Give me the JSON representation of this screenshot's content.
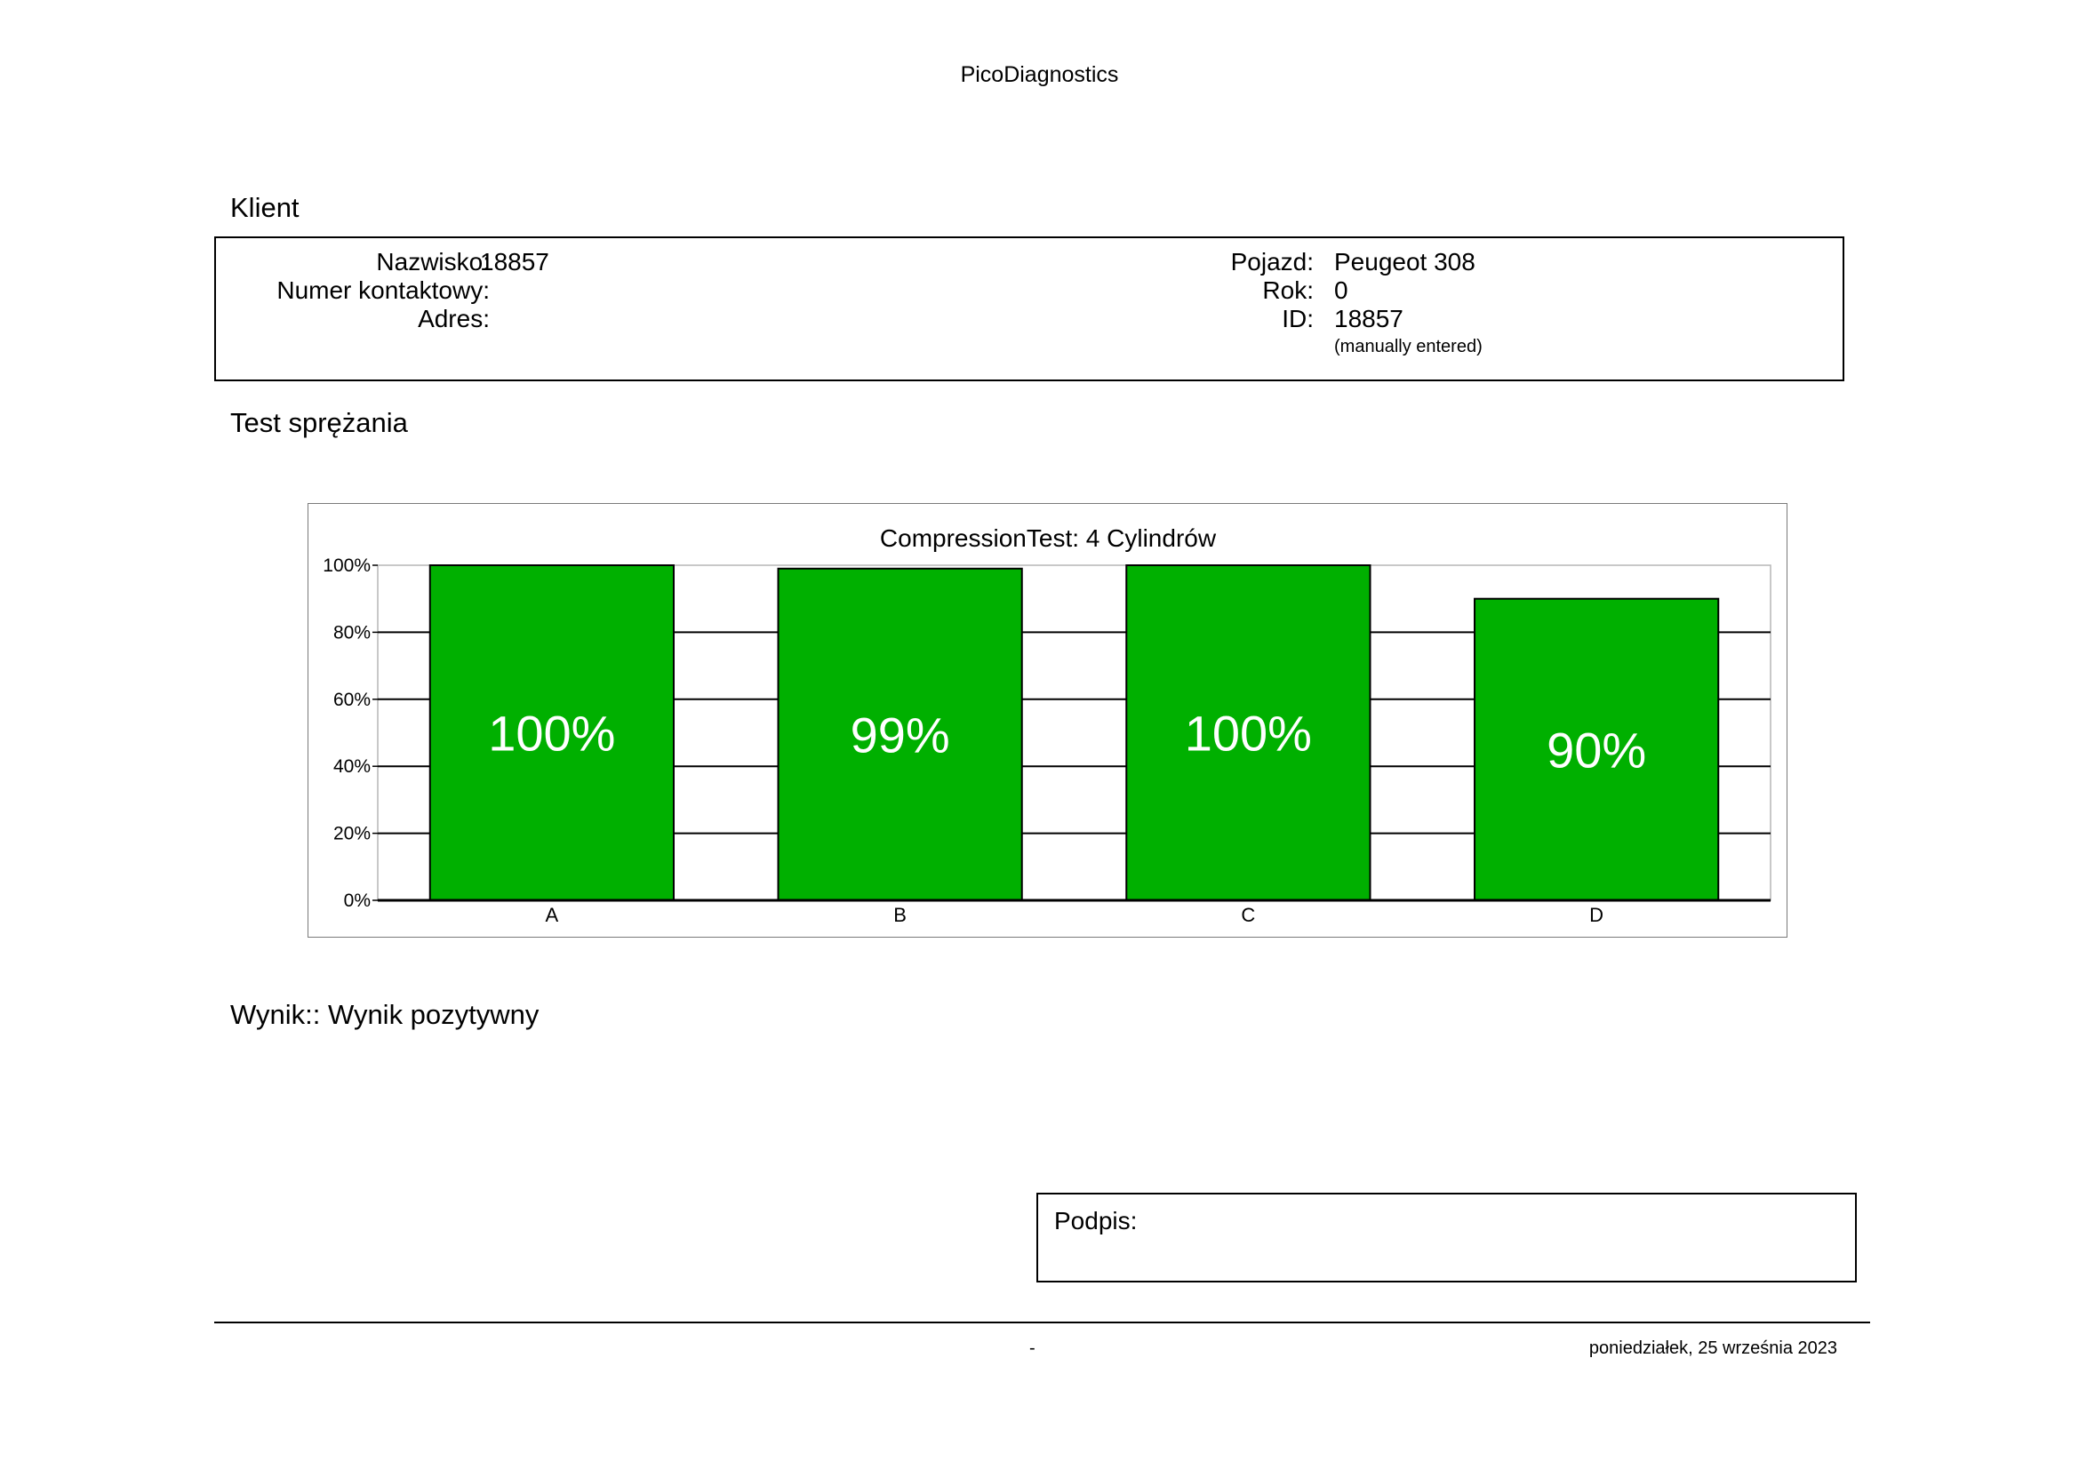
{
  "header": {
    "title": "PicoDiagnostics"
  },
  "client_section": {
    "title": "Klient",
    "left_fields": [
      {
        "label": "Nazwisko:",
        "value": "18857"
      },
      {
        "label": "Numer kontaktowy:",
        "value": ""
      },
      {
        "label": "Adres:",
        "value": ""
      }
    ],
    "right_fields": [
      {
        "label": "Pojazd:",
        "value": "Peugeot 308"
      },
      {
        "label": "Rok:",
        "value": "0"
      },
      {
        "label": "ID:",
        "value": "18857"
      }
    ],
    "id_note": "(manually entered)"
  },
  "test_section": {
    "title": "Test sprężania"
  },
  "chart_data": {
    "type": "bar",
    "title": "CompressionTest: 4 Cylindrów",
    "categories": [
      "A",
      "B",
      "C",
      "D"
    ],
    "values": [
      100,
      99,
      100,
      90
    ],
    "value_labels": [
      "100%",
      "99%",
      "100%",
      "90%"
    ],
    "ylim": [
      0,
      100
    ],
    "yticks": [
      "0%",
      "20%",
      "40%",
      "60%",
      "80%",
      "100%"
    ],
    "grid": true,
    "bar_color": "#00b000",
    "xlabel": "",
    "ylabel": ""
  },
  "result": {
    "text": "Wynik:: Wynik pozytywny"
  },
  "signature": {
    "label": "Podpis:"
  },
  "footer": {
    "center": "-",
    "date": "poniedziałek, 25 września 2023"
  }
}
